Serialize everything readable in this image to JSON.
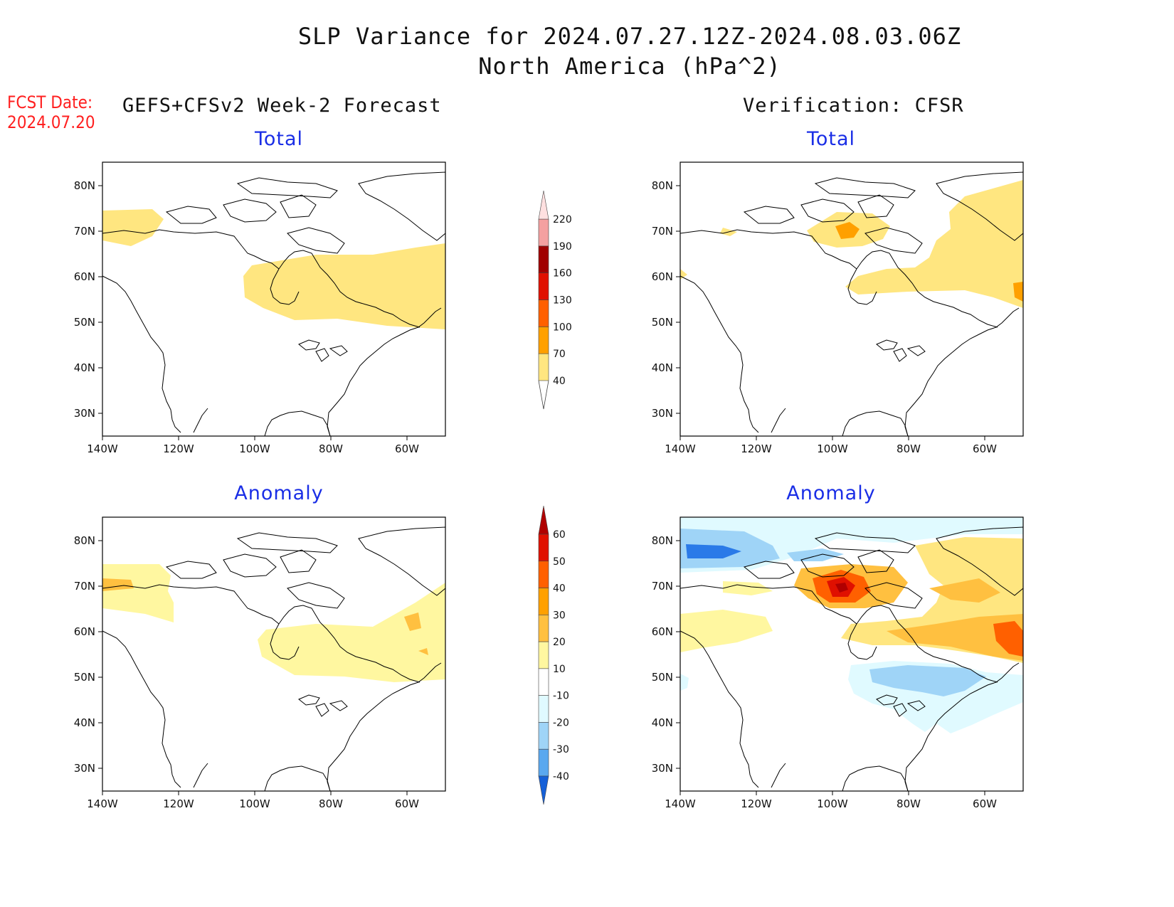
{
  "title": {
    "line1": "SLP Variance for 2024.07.27.12Z-2024.08.03.06Z",
    "line2": "North America (hPa^2)"
  },
  "fcst_date": {
    "label": "FCST Date:",
    "value": "2024.07.20"
  },
  "columns": {
    "left": "GEFS+CFSv2 Week-2 Forecast",
    "right": "Verification: CFSR"
  },
  "panels": {
    "top_left": "Total",
    "top_right": "Total",
    "bottom_left": "Anomaly",
    "bottom_right": "Anomaly"
  },
  "axes": {
    "lon_labels": [
      "140W",
      "120W",
      "100W",
      "80W",
      "60W"
    ],
    "lat_labels": [
      "80N",
      "70N",
      "60N",
      "50N",
      "40N",
      "30N"
    ]
  },
  "colorbars": {
    "total": {
      "labels": [
        "40",
        "70",
        "100",
        "130",
        "160",
        "190",
        "220"
      ],
      "colors": [
        "#ffe680",
        "#ffa000",
        "#ff6000",
        "#e01000",
        "#a00000",
        "#f4a0a0",
        "#ffe0e0"
      ]
    },
    "anomaly": {
      "labels": [
        "60",
        "50",
        "40",
        "30",
        "20",
        "10",
        "-10",
        "-20",
        "-30",
        "-40"
      ],
      "colors": [
        "#b00000",
        "#e01000",
        "#ff6000",
        "#ffa000",
        "#ffc040",
        "#fff7a0",
        "#ffffff",
        "#e0faff",
        "#9fd4f7",
        "#5aa8ef",
        "#2a7ae8",
        "#1560d8"
      ]
    }
  },
  "colors": {
    "title_blue": "#1a2ee6",
    "fcst_red": "#ff2020"
  }
}
